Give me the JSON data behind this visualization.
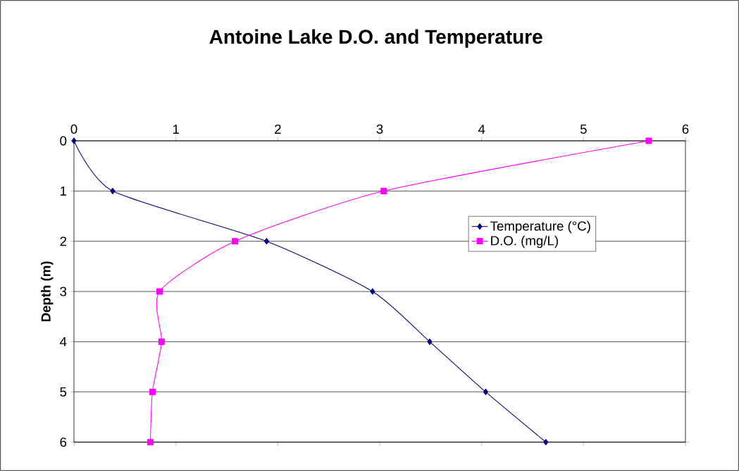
{
  "chart_data": {
    "type": "line",
    "title": "Antoine Lake D.O. and Temperature",
    "ylabel": "Depth (m)",
    "xlim": [
      0,
      6
    ],
    "xticks": [
      0,
      1,
      2,
      3,
      4,
      5,
      6
    ],
    "ylim": [
      6,
      0
    ],
    "yticks": [
      0,
      1,
      2,
      3,
      4,
      5,
      6
    ],
    "grid": "y",
    "legend": "right",
    "series": [
      {
        "name": "Temperature (°C)",
        "color": "#000080",
        "marker": "diamond",
        "x": [
          0,
          0.38,
          1.89,
          2.93,
          3.49,
          4.04,
          4.63
        ],
        "values": [
          0,
          1,
          2,
          3,
          4,
          5,
          6
        ]
      },
      {
        "name": "D.O. (mg/L)",
        "color": "#ff00ff",
        "marker": "square",
        "x": [
          5.64,
          3.04,
          1.58,
          0.84,
          0.86,
          0.77,
          0.75
        ],
        "values": [
          0,
          1,
          2,
          3,
          4,
          5,
          6
        ]
      }
    ]
  }
}
